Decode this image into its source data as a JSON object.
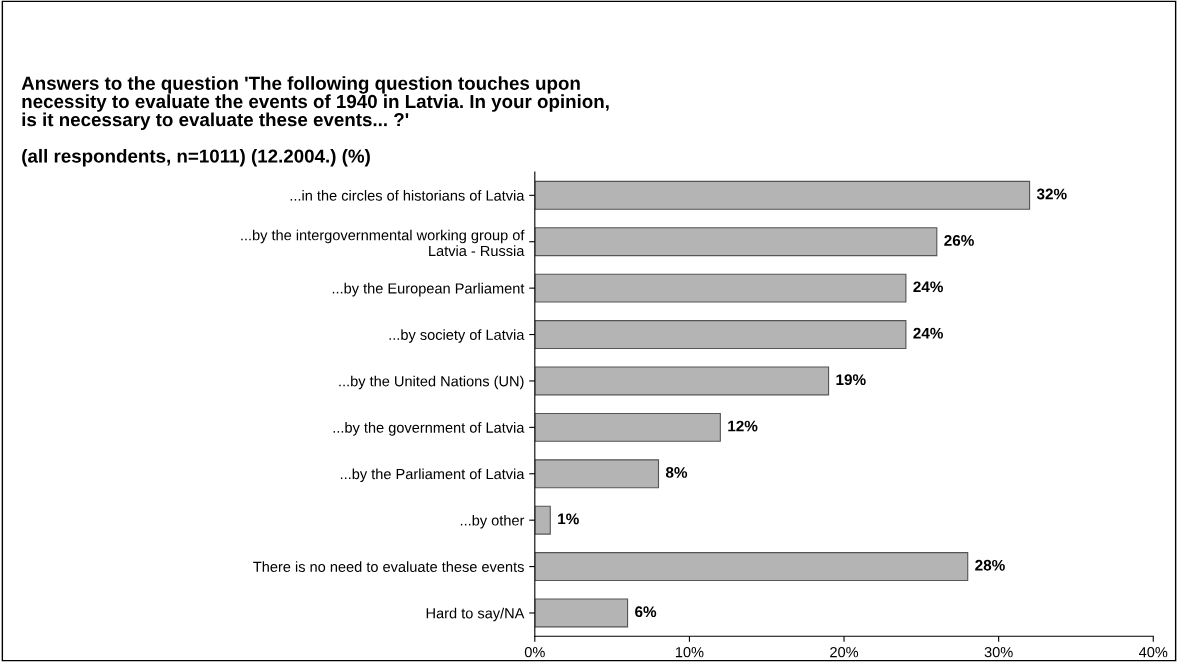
{
  "chart_data": {
    "type": "bar",
    "orientation": "horizontal",
    "title": "Answers to the question 'The following question touches upon\nnecessity to evaluate the events of 1940 in Latvia. In your opinion,\nis it necessary to evaluate these events... ?'",
    "subtitle": "(all respondents, n=1011) (12.2004.) (%)",
    "categories": [
      "...in the circles of historians of Latvia",
      "...by the intergovernmental working group of\nLatvia - Russia",
      "...by the European Parliament",
      "...by society of Latvia",
      "...by the United Nations (UN)",
      "...by the government of Latvia",
      "...by the Parliament of Latvia",
      "...by other",
      "There is no need to evaluate these events",
      "Hard to say/NA"
    ],
    "values": [
      32,
      26,
      24,
      24,
      19,
      12,
      8,
      1,
      28,
      6
    ],
    "color": "#b4b4b4",
    "value_labels": [
      "32%",
      "26%",
      "24%",
      "24%",
      "19%",
      "12%",
      "8%",
      "1%",
      "28%",
      "6%"
    ],
    "xlim": [
      0,
      40
    ],
    "xticks": [
      {
        "value": 0,
        "label": "0%"
      },
      {
        "value": 10,
        "label": "10%"
      },
      {
        "value": 20,
        "label": "20%"
      },
      {
        "value": 30,
        "label": "30%"
      },
      {
        "value": 40,
        "label": "40%"
      }
    ],
    "grid": false,
    "legend": false
  }
}
